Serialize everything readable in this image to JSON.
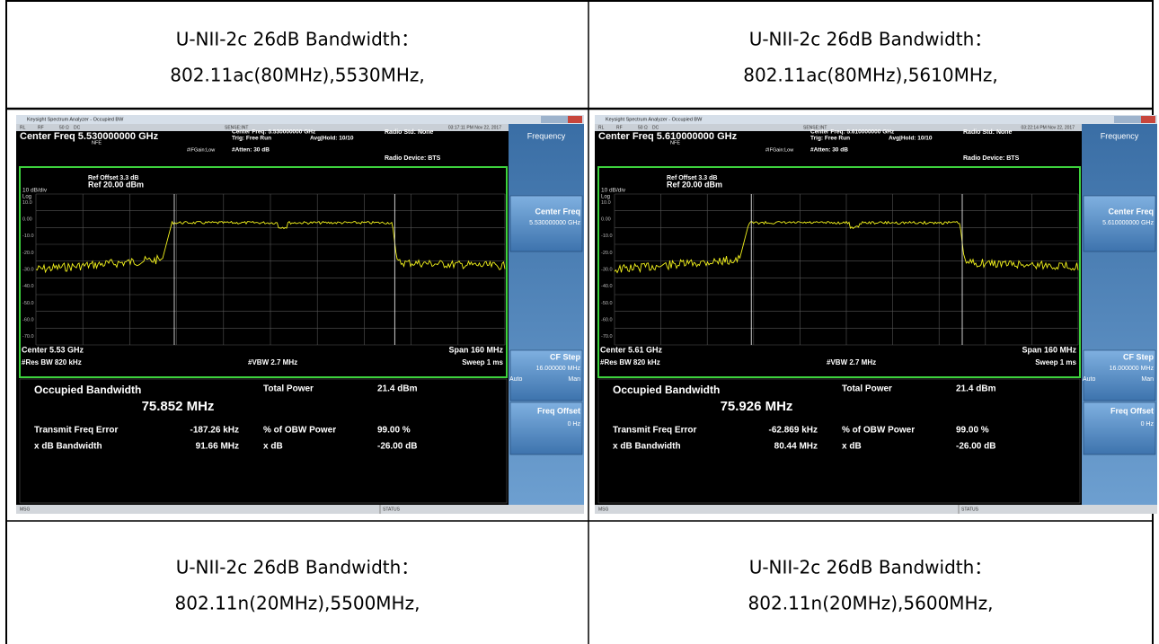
{
  "table": {
    "rows": [
      [
        {
          "line1": "U-NII-2c 26dB Bandwidth：",
          "line2": "802.11ac(80MHz),5530MHz,"
        },
        {
          "line1": "U-NII-2c 26dB Bandwidth：",
          "line2": "802.11ac(80MHz),5610MHz,"
        }
      ],
      [
        {
          "screen": {
            "title_bar": "Keysight Spectrum Analyzer - Occupied BW",
            "status_row": [
              "RL",
              "RF",
              "50 Ω",
              "DC",
              "SENSE:INT",
              "03:17:11 PM Nov 22, 2017"
            ],
            "center_freq_title": "Center Freq 5.530000000 GHz",
            "nfe": "NFE",
            "ifgain": "#IFGain:Low",
            "setup": [
              "Center Freq: 5.530000000 GHz",
              "Trig: Free Run",
              "#Atten: 30 dB"
            ],
            "avg_hold": "Avg|Hold: 10/10",
            "radio_std": "Radio Std: None",
            "radio_device": "Radio Device: BTS",
            "ref_offset": "Ref Offset 3.3 dB",
            "ref_level": "Ref 20.00 dBm",
            "scale": "10 dB/div",
            "scale_type": "Log",
            "y_labels": [
              "10.0",
              "0.00",
              "-10.0",
              "-20.0",
              "-30.0",
              "-40.0",
              "-50.0",
              "-60.0",
              "-70.0"
            ],
            "center": "Center  5.53 GHz",
            "span": "Span 160 MHz",
            "res_bw": "#Res BW  820 kHz",
            "vbw": "#VBW  2.7 MHz",
            "sweep": "Sweep  1 ms",
            "measurements": {
              "occupied_bandwidth_label": "Occupied Bandwidth",
              "occupied_bandwidth": "75.852 MHz",
              "total_power_label": "Total Power",
              "total_power": "21.4 dBm",
              "freq_error_label": "Transmit Freq Error",
              "freq_error": "-187.26 kHz",
              "obw_power_label": "% of OBW Power",
              "obw_power": "99.00 %",
              "xdb_bandwidth_label": "x dB Bandwidth",
              "xdb_bandwidth": "91.66 MHz",
              "xdb_label": "x dB",
              "xdb": "-26.00 dB"
            },
            "softkeys": {
              "menu": "Frequency",
              "center_freq": "Center Freq",
              "center_freq_value": "5.530000000 GHz",
              "cf_step": "CF Step",
              "cf_step_value": "16.000000 MHz",
              "auto": "Auto",
              "man": "Man",
              "freq_offset": "Freq Offset",
              "freq_offset_value": "0 Hz"
            },
            "msg": "MSG",
            "status": "STATUS"
          }
        },
        {
          "screen": {
            "title_bar": "Keysight Spectrum Analyzer - Occupied BW",
            "status_row": [
              "RL",
              "RF",
              "50 Ω",
              "DC",
              "SENSE:INT",
              "03:22:14 PM Nov 22, 2017"
            ],
            "center_freq_title": "Center Freq 5.610000000 GHz",
            "nfe": "NFE",
            "ifgain": "#IFGain:Low",
            "setup": [
              "Center Freq: 5.610000000 GHz",
              "Trig: Free Run",
              "#Atten: 30 dB"
            ],
            "avg_hold": "Avg|Hold: 10/10",
            "radio_std": "Radio Std: None",
            "radio_device": "Radio Device: BTS",
            "ref_offset": "Ref Offset 3.3 dB",
            "ref_level": "Ref 20.00 dBm",
            "scale": "10 dB/div",
            "scale_type": "Log",
            "y_labels": [
              "10.0",
              "0.00",
              "-10.0",
              "-20.0",
              "-30.0",
              "-40.0",
              "-50.0",
              "-60.0",
              "-70.0"
            ],
            "center": "Center  5.61 GHz",
            "span": "Span 160 MHz",
            "res_bw": "#Res BW  820 kHz",
            "vbw": "#VBW  2.7 MHz",
            "sweep": "Sweep  1 ms",
            "measurements": {
              "occupied_bandwidth_label": "Occupied Bandwidth",
              "occupied_bandwidth": "75.926 MHz",
              "total_power_label": "Total Power",
              "total_power": "21.4 dBm",
              "freq_error_label": "Transmit Freq Error",
              "freq_error": "-62.869 kHz",
              "obw_power_label": "% of OBW Power",
              "obw_power": "99.00 %",
              "xdb_bandwidth_label": "x dB Bandwidth",
              "xdb_bandwidth": "80.44 MHz",
              "xdb_label": "x dB",
              "xdb": "-26.00 dB"
            },
            "softkeys": {
              "menu": "Frequency",
              "center_freq": "Center Freq",
              "center_freq_value": "5.610000000 GHz",
              "cf_step": "CF Step",
              "cf_step_value": "16.000000 MHz",
              "auto": "Auto",
              "man": "Man",
              "freq_offset": "Freq Offset",
              "freq_offset_value": "0 Hz"
            },
            "msg": "MSG",
            "status": "STATUS"
          }
        }
      ],
      [
        {
          "line1": "U-NII-2c 26dB Bandwidth：",
          "line2": "802.11n(20MHz),5500MHz,"
        },
        {
          "line1": "U-NII-2c 26dB Bandwidth：",
          "line2": "802.11n(20MHz),5600MHz,"
        }
      ]
    ]
  }
}
